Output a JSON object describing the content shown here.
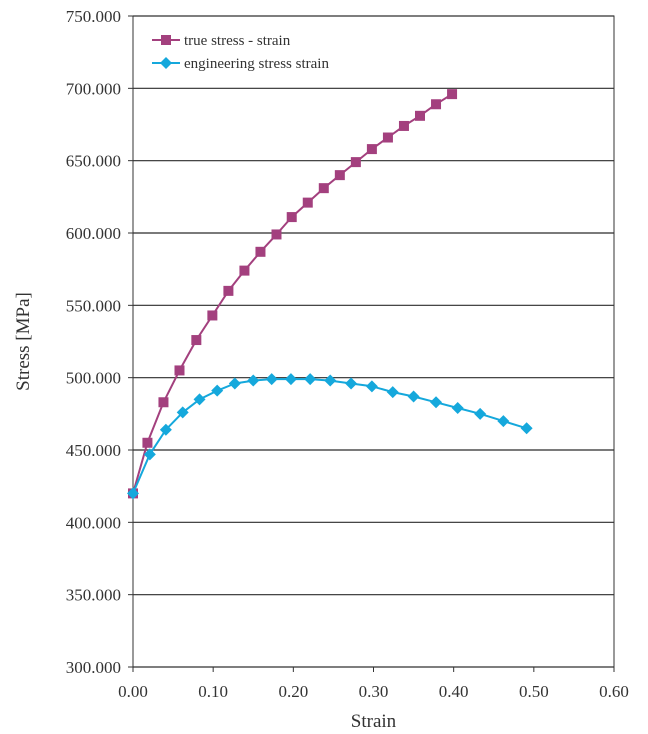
{
  "chart_data": {
    "type": "line",
    "xlabel": "Strain",
    "ylabel": "Stress [MPa]",
    "xlim": [
      0,
      0.6
    ],
    "ylim": [
      300,
      750
    ],
    "x_ticks": [
      "0.00",
      "0.10",
      "0.20",
      "0.30",
      "0.40",
      "0.50",
      "0.60"
    ],
    "y_ticks": [
      "300.000",
      "350.000",
      "400.000",
      "450.000",
      "500.000",
      "550.000",
      "600.000",
      "650.000",
      "700.000",
      "750.000"
    ],
    "grid": "horizontal",
    "legend_position": "top-left",
    "series": [
      {
        "name": "true stress - strain",
        "color": "#a3407e",
        "marker": "square",
        "x": [
          0.0,
          0.018,
          0.038,
          0.058,
          0.079,
          0.099,
          0.119,
          0.139,
          0.159,
          0.179,
          0.198,
          0.218,
          0.238,
          0.258,
          0.278,
          0.298,
          0.318,
          0.338,
          0.358,
          0.378,
          0.398
        ],
        "y": [
          420,
          455,
          483,
          505,
          526,
          543,
          560,
          574,
          587,
          599,
          611,
          621,
          631,
          640,
          649,
          658,
          666,
          674,
          681,
          689,
          696
        ]
      },
      {
        "name": "engineering stress strain",
        "color": "#15a8dc",
        "marker": "diamond",
        "x": [
          0.0,
          0.021,
          0.041,
          0.062,
          0.083,
          0.105,
          0.127,
          0.15,
          0.173,
          0.197,
          0.221,
          0.246,
          0.272,
          0.298,
          0.324,
          0.35,
          0.378,
          0.405,
          0.433,
          0.462,
          0.491
        ],
        "y": [
          420,
          447,
          464,
          476,
          485,
          491,
          496,
          498,
          499,
          499,
          499,
          498,
          496,
          494,
          490,
          487,
          483,
          479,
          475,
          470,
          465
        ]
      }
    ]
  }
}
